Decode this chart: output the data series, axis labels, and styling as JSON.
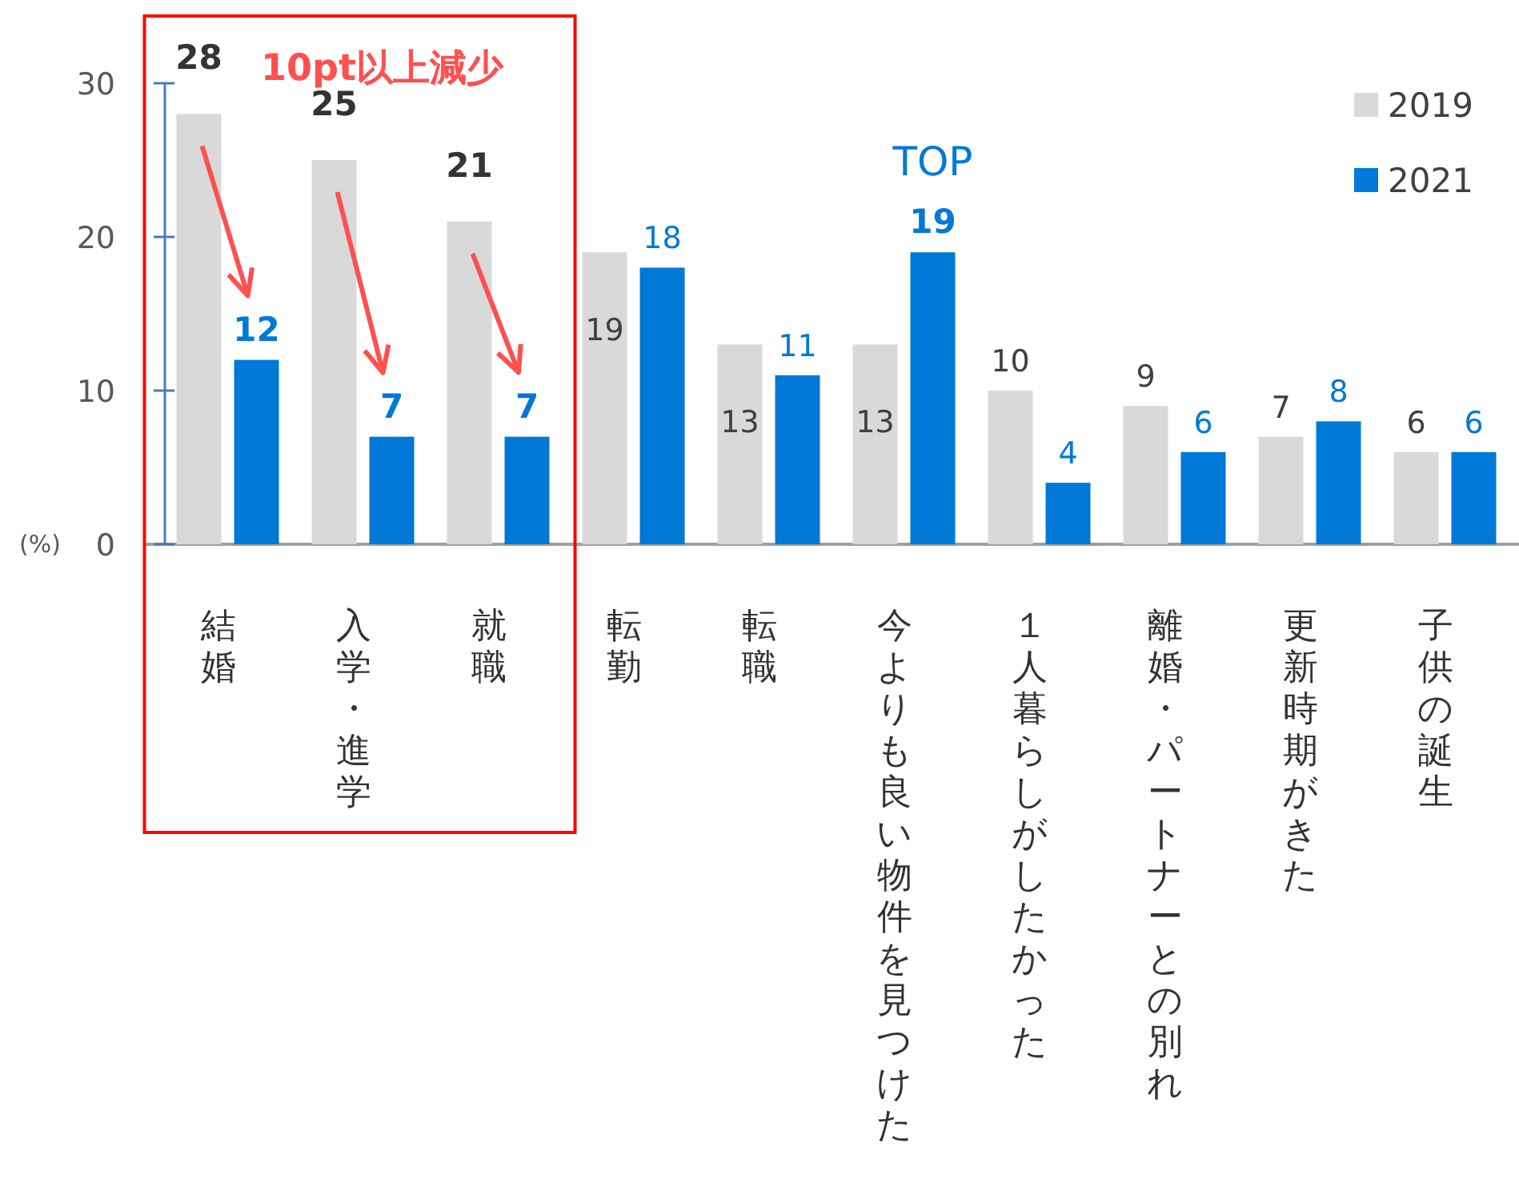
{
  "chart_data": {
    "type": "bar",
    "categories": [
      "結婚",
      "入学・進学",
      "就職",
      "転勤",
      "転職",
      "今よりも良い物件を見つけた",
      "１人暮らしがしたかった",
      "離婚・パートナーとの別れ",
      "更新時期がきた",
      "子供の誕生"
    ],
    "series": [
      {
        "name": "2019",
        "color": "#d9d9d9",
        "values": [
          28,
          25,
          21,
          19,
          13,
          13,
          10,
          9,
          7,
          6
        ]
      },
      {
        "name": "2021",
        "color": "#0078d7",
        "values": [
          12,
          7,
          7,
          18,
          11,
          19,
          4,
          6,
          8,
          6
        ]
      }
    ],
    "ylabel": "(%)",
    "ylim": [
      0,
      30
    ],
    "yticks": [
      0,
      10,
      20,
      30
    ],
    "data_labels": true,
    "legend": "top right",
    "grid": false,
    "annotations": [
      "10pt以上減少",
      "TOP"
    ]
  }
}
